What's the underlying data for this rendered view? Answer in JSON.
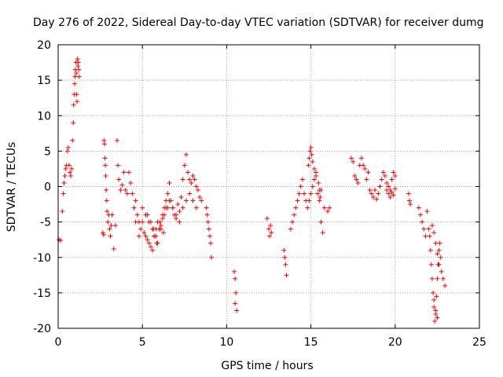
{
  "chart_data": {
    "type": "scatter",
    "title": "Day 276 of 2022, Sidereal Day-to-day VTEC variation (SDTVAR) for receiver dumg",
    "xlabel": "GPS time / hours",
    "ylabel": "SDTVAR / TECUs",
    "xlim": [
      0,
      25
    ],
    "ylim": [
      -20,
      20
    ],
    "x_ticks": [
      0,
      5,
      10,
      15,
      20,
      25
    ],
    "y_ticks": [
      -20,
      -15,
      -10,
      -5,
      0,
      5,
      10,
      15,
      20
    ],
    "x_tick_labels": [
      "0",
      "5",
      "10",
      "15",
      "20",
      "25"
    ],
    "y_tick_labels": [
      "-20",
      "-15",
      "-10",
      "-5",
      "0",
      "5",
      "10",
      "15",
      "20"
    ],
    "grid": true,
    "marker": "+",
    "series_color": "#ff0000",
    "series": [
      {
        "name": "SDTVAR",
        "x": [
          0.05,
          0.15,
          0.25,
          0.3,
          0.35,
          0.4,
          0.45,
          0.5,
          0.55,
          0.6,
          0.65,
          0.7,
          0.75,
          0.8,
          0.85,
          0.9,
          0.92,
          0.95,
          0.98,
          1.0,
          1.02,
          1.05,
          1.08,
          1.1,
          1.12,
          1.15,
          1.18,
          1.2,
          1.22,
          1.25,
          2.65,
          2.7,
          2.72,
          2.75,
          2.78,
          2.8,
          2.82,
          2.85,
          2.88,
          2.9,
          2.95,
          3.0,
          3.05,
          3.1,
          3.15,
          3.2,
          3.3,
          3.4,
          3.5,
          3.55,
          3.6,
          3.7,
          3.8,
          3.9,
          4.0,
          4.1,
          4.2,
          4.3,
          4.4,
          4.5,
          4.6,
          4.7,
          4.8,
          4.9,
          5.0,
          5.1,
          5.2,
          5.3,
          5.4,
          5.5,
          5.6,
          5.7,
          5.8,
          5.9,
          6.0,
          6.1,
          6.2,
          6.3,
          6.4,
          6.5,
          6.6,
          6.7,
          6.8,
          6.9,
          7.0,
          7.1,
          7.2,
          7.3,
          7.4,
          7.5,
          7.6,
          7.7,
          7.8,
          7.9,
          8.0,
          8.1,
          8.2,
          8.3,
          8.4,
          8.5,
          5.0,
          5.2,
          5.4,
          5.6,
          5.8,
          6.0,
          6.2,
          6.4,
          6.6,
          6.8,
          7.0,
          7.2,
          7.4,
          7.6,
          7.8,
          8.0,
          8.2,
          5.5,
          5.7,
          5.9,
          6.1,
          6.3,
          6.5,
          4.6,
          4.8,
          5.3,
          5.65,
          5.85,
          6.05,
          6.25,
          8.8,
          8.85,
          8.9,
          8.95,
          9.0,
          9.05,
          9.1,
          10.45,
          10.5,
          10.55,
          10.5,
          10.6,
          12.4,
          12.5,
          12.55,
          12.6,
          12.65,
          13.4,
          13.45,
          13.5,
          13.55,
          13.8,
          13.9,
          14.0,
          14.1,
          14.2,
          14.3,
          14.4,
          14.5,
          14.6,
          14.7,
          14.8,
          14.9,
          15.0,
          15.1,
          15.2,
          15.3,
          15.4,
          15.5,
          15.6,
          15.7,
          15.8,
          16.0,
          16.1,
          14.85,
          14.9,
          14.95,
          15.0,
          15.05,
          15.1,
          15.2,
          15.3,
          15.45,
          15.5,
          15.55,
          15.6,
          17.4,
          17.5,
          17.6,
          17.7,
          17.8,
          17.9,
          18.0,
          18.1,
          18.2,
          18.3,
          18.4,
          18.5,
          18.6,
          18.7,
          18.8,
          18.9,
          19.0,
          19.1,
          19.2,
          19.3,
          19.4,
          19.5,
          19.6,
          19.7,
          19.8,
          19.9,
          20.0,
          19.5,
          19.6,
          19.7,
          19.8,
          19.9,
          20.0,
          20.8,
          20.85,
          20.9,
          21.4,
          21.5,
          21.6,
          21.7,
          21.8,
          21.9,
          22.0,
          22.05,
          22.1,
          22.15,
          22.2,
          22.25,
          22.3,
          22.35,
          22.4,
          22.45,
          22.5,
          22.55,
          22.6,
          22.65,
          22.7,
          22.75,
          22.85,
          22.95,
          22.2,
          22.3,
          22.4,
          22.5,
          22.6,
          22.3,
          22.4,
          22.5
        ],
        "y": [
          -7.5,
          -7.6,
          -3.5,
          -1,
          0.5,
          1.5,
          2.5,
          3,
          5,
          5.5,
          3,
          2,
          1.5,
          2.5,
          6.5,
          9,
          11.5,
          13,
          14.5,
          15.5,
          16.5,
          17.5,
          16,
          13,
          12,
          18,
          17,
          17.5,
          16.5,
          15.5,
          -6.5,
          -6.8,
          6.5,
          6,
          4,
          3,
          1.5,
          -0.5,
          -2,
          -3.5,
          -5,
          -4,
          -6,
          -7,
          -5.5,
          -4,
          -8.8,
          -5.5,
          6.5,
          3,
          1,
          -0.5,
          0.2,
          2,
          -0.5,
          -1,
          2,
          0.5,
          -1,
          -3,
          -2,
          -4,
          -5,
          -6,
          -5,
          -6.5,
          -7,
          -7.5,
          -8,
          -8.5,
          -9,
          -7,
          -6,
          -5,
          -6,
          -5.5,
          -4.5,
          -3,
          -2,
          -1,
          0.5,
          -2,
          -3,
          -4,
          -4.5,
          -2.5,
          -3.5,
          -1.5,
          1,
          3,
          4.5,
          2,
          1,
          0.5,
          1.5,
          1,
          0,
          -0.5,
          -1.5,
          -2,
          -3,
          -4,
          -5,
          -6,
          -7,
          -6,
          -4,
          -3,
          -2,
          -3,
          -4,
          -5,
          -3,
          -2,
          -1,
          -2,
          -3,
          -5,
          -7,
          -8,
          -6,
          -4,
          -3,
          -5,
          -7,
          -4,
          -6,
          -8,
          -5,
          -6.5,
          -3,
          -4,
          -5,
          -6,
          -7,
          -8,
          -10,
          -12,
          -13,
          -15,
          -16.5,
          -17.5,
          -4.5,
          -6,
          -7,
          -5.5,
          -6.5,
          -9,
          -10,
          -11,
          -12.5,
          -6,
          -5,
          -4,
          -3,
          -2,
          -1,
          0,
          1,
          -1,
          -2,
          -3,
          -2,
          -1,
          0,
          1,
          2,
          -1,
          -2,
          -5,
          -6.5,
          -3,
          -3.5,
          -3,
          3,
          4,
          5,
          5.5,
          4.5,
          3.5,
          2.5,
          1.5,
          0.5,
          -0.5,
          -1.5,
          -0.5,
          4,
          3.5,
          1.5,
          1,
          0.5,
          3,
          4,
          3,
          2.5,
          1,
          2,
          -0.5,
          -1,
          -1.5,
          -0.5,
          -1.8,
          -1,
          0,
          1,
          2,
          1.5,
          0.5,
          0,
          -0.5,
          1,
          2,
          1.5,
          -0.5,
          -1,
          -1.5,
          -0.8,
          -1.2,
          -0.3,
          -1,
          -2,
          -2.5,
          -3,
          -4,
          -5,
          -6,
          -7,
          -3.5,
          -6,
          -7,
          -9,
          -11,
          -13,
          -15,
          -17,
          -19,
          -17.5,
          -15.5,
          -13,
          -11,
          -9,
          -8,
          -10,
          -12,
          -13,
          -14,
          -5.5,
          -6.5,
          -8,
          -9.5,
          -11,
          -16,
          -18,
          -18.5
        ]
      }
    ]
  }
}
